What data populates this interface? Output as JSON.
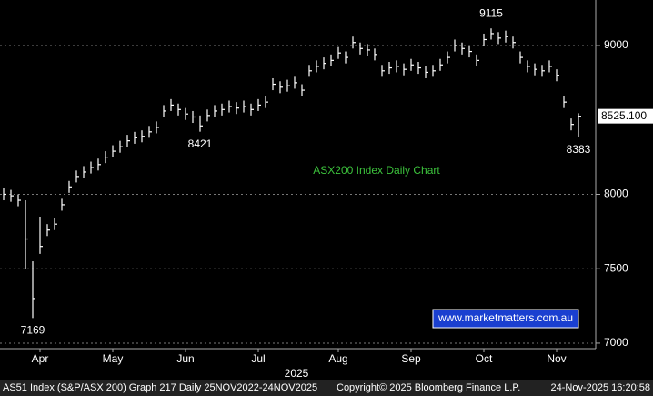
{
  "chart_data": {
    "type": "ohlc",
    "title": "ASX200 Index Daily Chart",
    "watermark": "www.marketmatters.com.au",
    "year_label": "2025",
    "footer_left": "AS51 Index (S&P/ASX 200) Graph 217 Daily 25NOV2022-24NOV2025",
    "footer_mid": "Copyright© 2025 Bloomberg Finance L.P.",
    "footer_right": "24-Nov-2025 16:20:58",
    "categories": [
      null,
      null,
      null,
      null,
      null,
      "Apr",
      null,
      null,
      null,
      null,
      null,
      null,
      null,
      null,
      null,
      "May",
      null,
      null,
      null,
      null,
      null,
      null,
      null,
      null,
      null,
      "Jun",
      null,
      null,
      null,
      null,
      null,
      null,
      null,
      null,
      null,
      "Jul",
      null,
      null,
      null,
      null,
      null,
      null,
      null,
      null,
      null,
      null,
      "Aug",
      null,
      null,
      null,
      null,
      null,
      null,
      null,
      null,
      null,
      "Sep",
      null,
      null,
      null,
      null,
      null,
      null,
      null,
      null,
      null,
      "Oct",
      null,
      null,
      null,
      null,
      null,
      null,
      null,
      null,
      null,
      "Nov",
      null,
      null,
      null
    ],
    "high": [
      8040,
      8030,
      8000,
      7960,
      7550,
      7850,
      7800,
      7840,
      7970,
      8090,
      8160,
      8190,
      8220,
      8240,
      8290,
      8330,
      8360,
      8400,
      8420,
      8430,
      8460,
      8490,
      8600,
      8640,
      8610,
      8580,
      8560,
      8530,
      8570,
      8600,
      8610,
      8630,
      8620,
      8630,
      8610,
      8640,
      8660,
      8780,
      8760,
      8770,
      8790,
      8740,
      8870,
      8900,
      8920,
      8940,
      8990,
      8960,
      9060,
      9020,
      9010,
      8980,
      8870,
      8890,
      8900,
      8880,
      8910,
      8890,
      8860,
      8870,
      8910,
      8960,
      9040,
      9020,
      9000,
      8940,
      9080,
      9115,
      9090,
      9100,
      9060,
      8960,
      8900,
      8880,
      8870,
      8900,
      8840,
      8660,
      8510,
      8545
    ],
    "low": [
      7960,
      7950,
      7920,
      7500,
      7169,
      7600,
      7720,
      7760,
      7890,
      8010,
      8080,
      8110,
      8140,
      8160,
      8210,
      8250,
      8280,
      8320,
      8340,
      8350,
      8380,
      8410,
      8520,
      8560,
      8530,
      8500,
      8480,
      8421,
      8490,
      8520,
      8530,
      8550,
      8540,
      8550,
      8530,
      8560,
      8580,
      8700,
      8680,
      8690,
      8710,
      8660,
      8790,
      8820,
      8840,
      8860,
      8910,
      8880,
      8980,
      8940,
      8930,
      8900,
      8790,
      8810,
      8820,
      8800,
      8830,
      8810,
      8780,
      8790,
      8830,
      8880,
      8960,
      8940,
      8920,
      8860,
      9000,
      9040,
      9010,
      9020,
      8980,
      8880,
      8820,
      8800,
      8790,
      8820,
      8760,
      8580,
      8430,
      8383
    ],
    "close": [
      8000,
      7990,
      7960,
      7700,
      7300,
      7650,
      7760,
      7800,
      7930,
      8050,
      8120,
      8150,
      8180,
      8200,
      8250,
      8290,
      8320,
      8360,
      8380,
      8390,
      8420,
      8450,
      8560,
      8600,
      8570,
      8540,
      8520,
      8460,
      8530,
      8560,
      8570,
      8590,
      8580,
      8590,
      8570,
      8600,
      8620,
      8740,
      8720,
      8730,
      8750,
      8700,
      8830,
      8860,
      8880,
      8900,
      8950,
      8920,
      9020,
      8980,
      8970,
      8940,
      8830,
      8850,
      8860,
      8840,
      8870,
      8850,
      8820,
      8830,
      8870,
      8920,
      9000,
      8980,
      8960,
      8900,
      9040,
      9080,
      9050,
      9060,
      9020,
      8920,
      8860,
      8840,
      8830,
      8860,
      8800,
      8620,
      8470,
      8525
    ],
    "last_price": {
      "value": 8525.1,
      "label": "8525.100"
    },
    "color": "#ffffff",
    "ylim": [
      6963,
      9306
    ],
    "yticks": [
      7000,
      7500,
      8000,
      9000
    ],
    "grid": true
  }
}
